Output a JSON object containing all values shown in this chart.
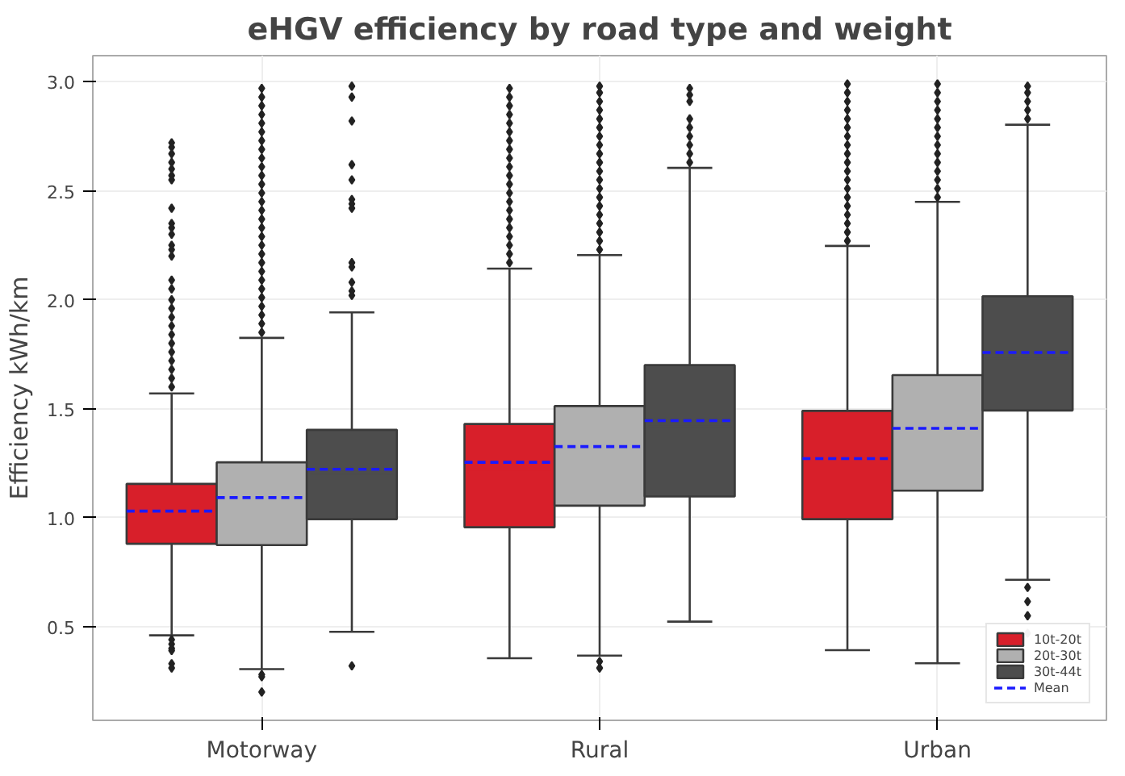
{
  "chart_data": {
    "type": "box",
    "title": "eHGV efficiency by road type and weight",
    "ylabel": "Efficiency kWh/km",
    "categories": [
      "Motorway",
      "Rural",
      "Urban"
    ],
    "ylim": [
      0.07,
      3.12
    ],
    "yticks": [
      {
        "value": 0.5,
        "label": "0.5"
      },
      {
        "value": 1.0,
        "label": "1.0"
      },
      {
        "value": 1.5,
        "label": "1.5"
      },
      {
        "value": 2.0,
        "label": "2.0"
      },
      {
        "value": 2.5,
        "label": "2.5"
      },
      {
        "value": 3.0,
        "label": "3.0"
      }
    ],
    "grid": true,
    "legend": "bottom right",
    "marker": "diamond",
    "series": [
      {
        "name": "10t-20t",
        "color": "#d81f2a",
        "boxes": [
          {
            "low": 0.46,
            "q1": 0.88,
            "median": 1.01,
            "q3": 1.155,
            "high": 1.57,
            "mean": 1.03,
            "outliers": [
              1.6,
              1.64,
              1.68,
              1.72,
              1.76,
              1.8,
              1.84,
              1.88,
              1.92,
              1.96,
              2.0,
              2.05,
              2.09,
              2.2,
              2.23,
              2.25,
              2.3,
              2.33,
              2.35,
              2.42,
              2.55,
              2.57,
              2.6,
              2.63,
              2.67,
              2.7,
              2.72,
              0.44,
              0.42,
              0.4,
              0.39,
              0.33,
              0.31
            ]
          },
          {
            "low": 0.355,
            "q1": 0.956,
            "median": 1.22,
            "q3": 1.43,
            "high": 2.143,
            "mean": 1.254,
            "outliers": [
              2.17,
              2.21,
              2.25,
              2.29,
              2.33,
              2.37,
              2.41,
              2.45,
              2.49,
              2.53,
              2.57,
              2.61,
              2.65,
              2.69,
              2.73,
              2.77,
              2.81,
              2.85,
              2.89,
              2.93,
              2.97
            ]
          },
          {
            "low": 0.392,
            "q1": 0.993,
            "median": 1.24,
            "q3": 1.49,
            "high": 2.247,
            "mean": 1.271,
            "outliers": [
              2.27,
              2.31,
              2.35,
              2.39,
              2.43,
              2.47,
              2.51,
              2.55,
              2.59,
              2.63,
              2.67,
              2.71,
              2.75,
              2.79,
              2.83,
              2.87,
              2.91,
              2.95,
              2.99
            ]
          }
        ]
      },
      {
        "name": "20t-30t",
        "color": "#b0b0b0",
        "boxes": [
          {
            "low": 0.305,
            "q1": 0.874,
            "median": 1.06,
            "q3": 1.254,
            "high": 1.825,
            "mean": 1.092,
            "outliers": [
              1.85,
              1.89,
              1.93,
              1.97,
              2.01,
              2.05,
              2.09,
              2.13,
              2.17,
              2.21,
              2.25,
              2.29,
              2.33,
              2.37,
              2.41,
              2.45,
              2.49,
              2.53,
              2.57,
              2.61,
              2.65,
              2.69,
              2.73,
              2.77,
              2.81,
              2.85,
              2.89,
              2.93,
              2.97,
              0.28,
              0.27,
              0.2
            ]
          },
          {
            "low": 0.367,
            "q1": 1.055,
            "median": 1.3,
            "q3": 1.512,
            "high": 2.205,
            "mean": 1.326,
            "outliers": [
              2.23,
              2.27,
              2.31,
              2.35,
              2.39,
              2.43,
              2.47,
              2.51,
              2.55,
              2.59,
              2.63,
              2.67,
              2.71,
              2.75,
              2.79,
              2.83,
              2.87,
              2.91,
              2.95,
              2.98,
              0.34,
              0.31
            ]
          },
          {
            "low": 0.332,
            "q1": 1.124,
            "median": 1.38,
            "q3": 1.654,
            "high": 2.449,
            "mean": 1.41,
            "outliers": [
              2.47,
              2.51,
              2.55,
              2.59,
              2.63,
              2.67,
              2.71,
              2.75,
              2.79,
              2.83,
              2.87,
              2.91,
              2.95,
              2.99
            ]
          }
        ]
      },
      {
        "name": "30t-44t",
        "color": "#4d4d4d",
        "boxes": [
          {
            "low": 0.476,
            "q1": 0.993,
            "median": 1.2,
            "q3": 1.403,
            "high": 1.942,
            "mean": 1.222,
            "outliers": [
              2.02,
              2.04,
              2.08,
              2.15,
              2.17,
              2.42,
              2.44,
              2.46,
              2.55,
              2.62,
              2.82,
              2.93,
              2.98,
              0.32
            ]
          },
          {
            "low": 0.523,
            "q1": 1.097,
            "median": 1.42,
            "q3": 1.7,
            "high": 2.605,
            "mean": 1.445,
            "outliers": [
              2.63,
              2.67,
              2.71,
              2.75,
              2.79,
              2.83,
              2.91,
              2.94,
              2.97
            ]
          },
          {
            "low": 0.715,
            "q1": 1.492,
            "median": 1.73,
            "q3": 2.016,
            "high": 2.803,
            "mean": 1.758,
            "outliers": [
              2.83,
              2.87,
              2.91,
              2.95,
              2.98,
              0.68,
              0.615,
              0.55,
              0.47
            ]
          }
        ]
      },
      {
        "name": "Mean",
        "color": "#1a1aff",
        "line_style": "dashed",
        "values": [
          null,
          null,
          null
        ]
      }
    ]
  }
}
